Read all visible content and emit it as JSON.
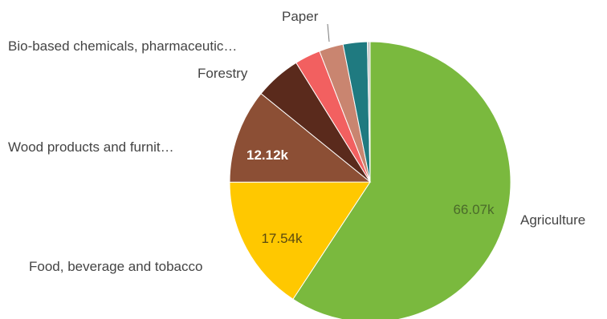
{
  "chart_data": {
    "type": "pie",
    "title": "",
    "slices": [
      {
        "label": "Agriculture",
        "value": 66.07,
        "value_label": "66.07k",
        "color": "#7ab93e",
        "label_color": "#4a6a2a"
      },
      {
        "label": "Food, beverage and tobacco",
        "value": 17.54,
        "value_label": "17.54k",
        "color": "#ffc800",
        "label_color": "#5a4a10"
      },
      {
        "label": "Wood products and furnit…",
        "value": 12.12,
        "value_label": "12.12k",
        "color": "#8c4f35",
        "label_color": "#ffffff"
      },
      {
        "label": "Forestry",
        "value": 5.93,
        "value_label": "",
        "color": "#5a2a1c",
        "label_color": ""
      },
      {
        "label": "Bio-based chemicals, pharmaceutic…",
        "value": 3.3,
        "value_label": "",
        "color": "#f26060",
        "label_color": ""
      },
      {
        "label": "Paper",
        "value": 3.1,
        "value_label": "",
        "color": "#c98570",
        "label_color": ""
      },
      {
        "label": "",
        "value": 3.1,
        "value_label": "",
        "color": "#1f7a80",
        "label_color": ""
      },
      {
        "label": "",
        "value": 0.35,
        "value_label": "",
        "color": "#c8c8c8",
        "label_color": ""
      }
    ]
  }
}
